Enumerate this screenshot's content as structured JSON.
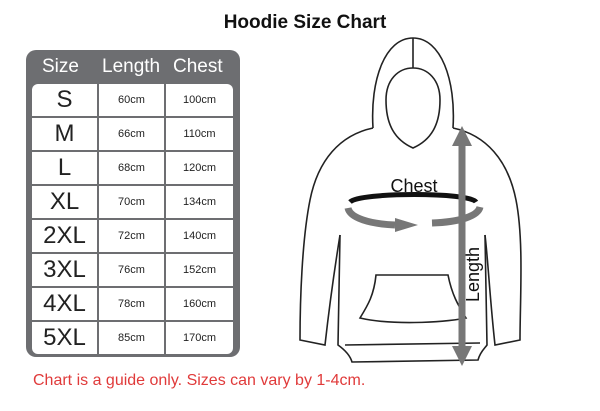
{
  "title": "Hoodie Size Chart",
  "table": {
    "headers": [
      "Size",
      "Length",
      "Chest"
    ],
    "rows": [
      [
        "S",
        "60cm",
        "100cm"
      ],
      [
        "M",
        "66cm",
        "110cm"
      ],
      [
        "L",
        "68cm",
        "120cm"
      ],
      [
        "XL",
        "70cm",
        "134cm"
      ],
      [
        "2XL",
        "72cm",
        "140cm"
      ],
      [
        "3XL",
        "76cm",
        "152cm"
      ],
      [
        "4XL",
        "78cm",
        "160cm"
      ],
      [
        "5XL",
        "85cm",
        "170cm"
      ]
    ]
  },
  "diagram": {
    "chest_label": "Chest",
    "length_label": "Length"
  },
  "note": "Chart is a guide only. Sizes can vary by 1-4cm.",
  "colors": {
    "table_frame": "#6d6e71",
    "note": "#e03a3a",
    "arrow": "#777777"
  }
}
